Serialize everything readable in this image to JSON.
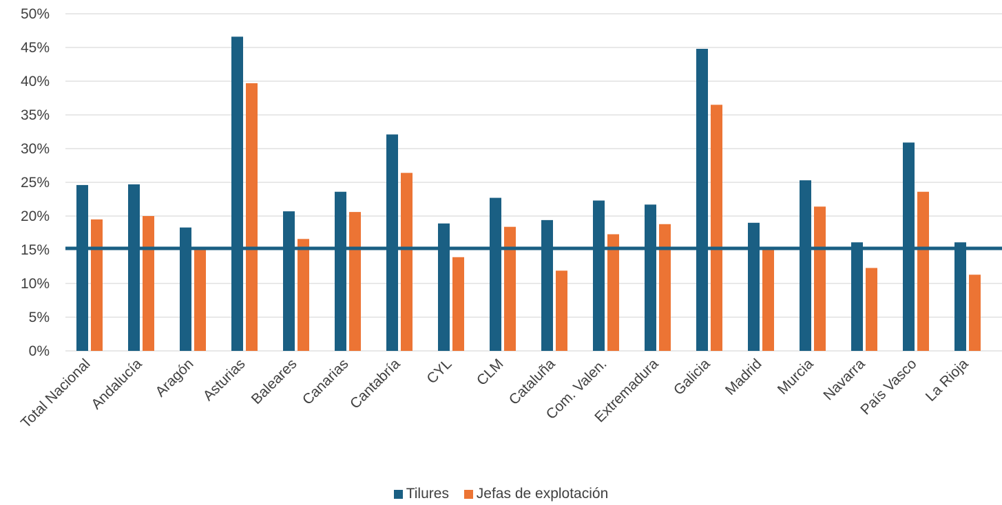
{
  "chart_data": {
    "type": "bar",
    "categories": [
      "Total Nacional",
      "Andalucía",
      "Aragón",
      "Asturias",
      "Baleares",
      "Canarias",
      "Cantabría",
      "CYL",
      "CLM",
      "Cataluña",
      "Com. Valen.",
      "Extremadura",
      "Galicia",
      "Madrid",
      "Murcia",
      "Navarra",
      "País Vasco",
      "La Rioja"
    ],
    "series": [
      {
        "name": "Tilures",
        "color": "#1a5f83",
        "values": [
          24.6,
          24.7,
          18.3,
          46.6,
          20.7,
          23.6,
          32.1,
          18.9,
          22.7,
          19.4,
          22.3,
          21.7,
          44.8,
          19.0,
          25.3,
          16.1,
          30.9,
          16.1
        ]
      },
      {
        "name": "Jefas de explotación",
        "color": "#ec7434",
        "values": [
          19.5,
          20.0,
          15.2,
          39.7,
          16.6,
          20.6,
          26.4,
          13.9,
          18.4,
          11.9,
          17.3,
          18.8,
          36.5,
          15.1,
          21.4,
          12.3,
          23.6,
          11.3
        ]
      }
    ],
    "reference_line": {
      "value": 15.2,
      "color": "#1a5f83"
    },
    "ylim": [
      0,
      50
    ],
    "yticks": [
      "0%",
      "5%",
      "10%",
      "15%",
      "20%",
      "25%",
      "30%",
      "35%",
      "40%",
      "45%",
      "50%"
    ],
    "title": "",
    "xlabel": "",
    "ylabel": "",
    "grid": true,
    "legend_position": "bottom"
  }
}
